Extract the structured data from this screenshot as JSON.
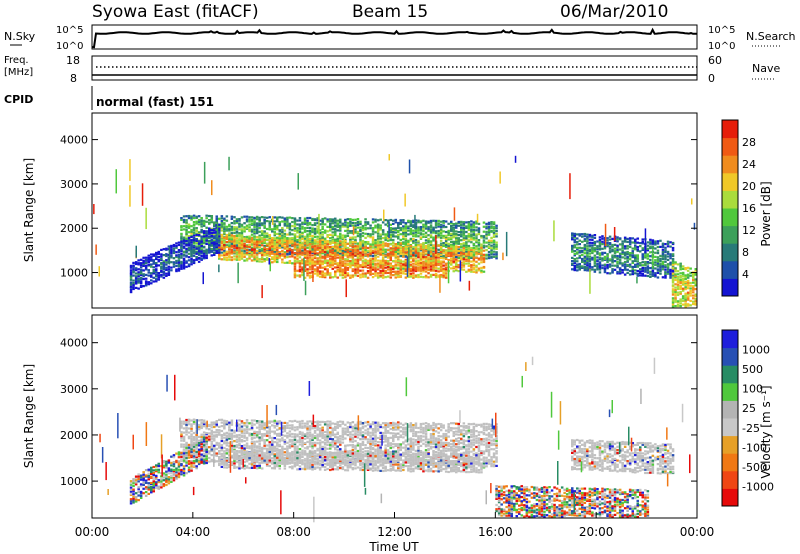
{
  "header": {
    "title": "Syowa East (fitACF)",
    "beam": "Beam 15",
    "date": "06/Mar/2010"
  },
  "noise_panel": {
    "left_label": "N.Sky",
    "right_label": "N.Search",
    "top_tick": "10^5",
    "bottom_tick": "10^0",
    "right_top_tick": "10^5",
    "right_bottom_tick": "10^0"
  },
  "freq_panel": {
    "label_line1": "Freq.",
    "label_line2": "[MHz]",
    "tick_top": "18",
    "tick_bottom": "8",
    "right_label": "Nave",
    "right_tick_top": "60",
    "right_tick_bottom": "0"
  },
  "cpid_panel": {
    "label": "CPID",
    "value": "normal (fast) 151"
  },
  "colors": {
    "power_scale": [
      "#1414d2",
      "#1e50aa",
      "#287a78",
      "#3ca05a",
      "#50c83c",
      "#aadc3c",
      "#f0c828",
      "#f08c1e",
      "#f05a14",
      "#e61e0a"
    ],
    "velocity_scale": [
      "#1e1edc",
      "#2850b4",
      "#288c64",
      "#50c83c",
      "#b4b4b4",
      "#c8c8c8",
      "#e6a028",
      "#f07814",
      "#f04614",
      "#e60a0a"
    ],
    "groundscatter": "#c0c0c0"
  },
  "chart_data": [
    {
      "type": "heatmap",
      "name": "power-panel",
      "ylabel": "Slant Range [km]",
      "y_ticks": [
        "1000",
        "2000",
        "3000",
        "4000"
      ],
      "ylim": [
        200,
        4600
      ],
      "xlim_hours": [
        0,
        24
      ],
      "colorbar_label": "Power [dB]",
      "colorbar_ticks": [
        "4",
        "8",
        "12",
        "16",
        "20",
        "24",
        "28"
      ],
      "colorbar_range": [
        0,
        30
      ],
      "echo_bands": [
        {
          "t_start": 3.5,
          "t_end": 16.0,
          "range_center_start": 1900,
          "range_center_end": 1750,
          "width_km": 400,
          "level": 14
        },
        {
          "t_start": 5.0,
          "t_end": 15.5,
          "range_center_start": 1600,
          "range_center_end": 1300,
          "width_km": 250,
          "level": 24
        },
        {
          "t_start": 8.0,
          "t_end": 14.0,
          "range_center_start": 1100,
          "range_center_end": 1100,
          "width_km": 200,
          "level": 26
        },
        {
          "t_start": 1.5,
          "t_end": 5.0,
          "range_center_start": 900,
          "range_center_end": 1800,
          "width_km": 300,
          "level": 6
        },
        {
          "t_start": 19.0,
          "t_end": 23.0,
          "range_center_start": 1500,
          "range_center_end": 1300,
          "width_km": 400,
          "level": 10
        },
        {
          "t_start": 23.0,
          "t_end": 24.0,
          "range_center_start": 700,
          "range_center_end": 500,
          "width_km": 600,
          "level": 20
        }
      ]
    },
    {
      "type": "heatmap",
      "name": "velocity-panel",
      "ylabel": "Slant Range [km]",
      "y_ticks": [
        "1000",
        "2000",
        "3000",
        "4000"
      ],
      "ylim": [
        200,
        4600
      ],
      "xlim_hours": [
        0,
        24
      ],
      "xlabel": "Time UT",
      "x_ticks": [
        "00:00",
        "04:00",
        "08:00",
        "12:00",
        "16:00",
        "20:00",
        "00:00"
      ],
      "colorbar_label": "Velocity [m s⁻¹]",
      "colorbar_ticks": [
        "1000",
        "500",
        "100",
        "25",
        "-25",
        "-100",
        "-500",
        "-1000"
      ],
      "echo_bands": [
        {
          "t_start": 3.5,
          "t_end": 16.0,
          "range_center_start": 1900,
          "range_center_end": 1800,
          "width_km": 450,
          "level": "ground"
        },
        {
          "t_start": 5.0,
          "t_end": 15.5,
          "range_center_start": 1500,
          "range_center_end": 1400,
          "width_km": 200,
          "level": "ground"
        },
        {
          "t_start": 1.5,
          "t_end": 4.5,
          "range_center_start": 800,
          "range_center_end": 1700,
          "width_km": 250,
          "level": "mixed"
        },
        {
          "t_start": 19.0,
          "t_end": 23.0,
          "range_center_start": 1600,
          "range_center_end": 1500,
          "width_km": 300,
          "level": "ground"
        },
        {
          "t_start": 16.0,
          "t_end": 22.0,
          "range_center_start": 600,
          "range_center_end": 500,
          "width_km": 300,
          "level": "mixed"
        }
      ]
    }
  ]
}
